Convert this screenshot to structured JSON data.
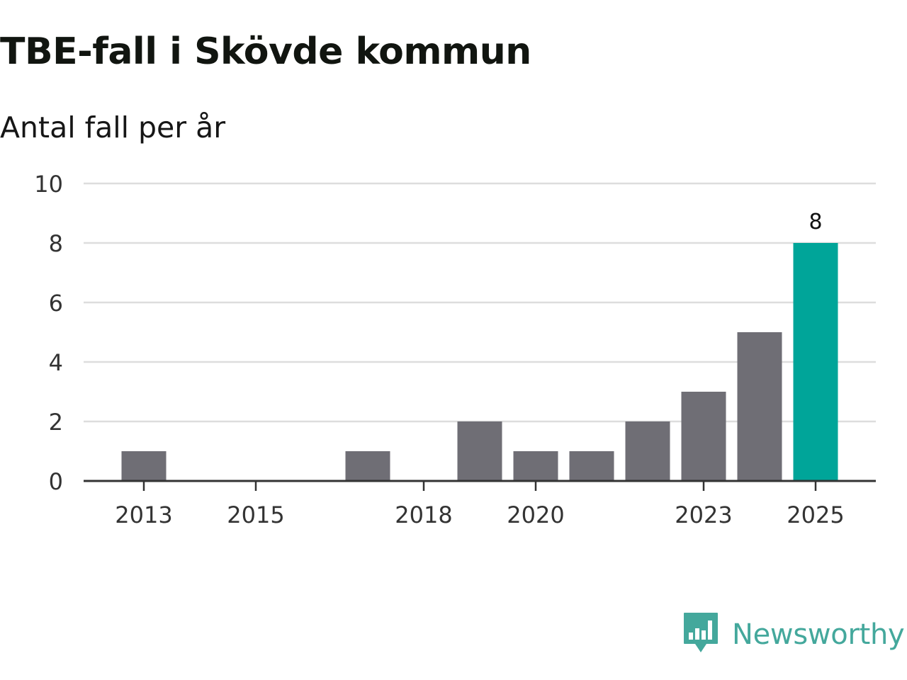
{
  "title": "TBE-fall i Skövde kommun",
  "subtitle": "Antal fall per år",
  "brand": {
    "name": "Newsworthy",
    "icon": "newsworthy-logo-icon",
    "color": "#44a89c"
  },
  "colors": {
    "bar": "#6f6e75",
    "highlight": "#00a599",
    "grid": "#dddddd",
    "axis": "#333333"
  },
  "chart_data": {
    "type": "bar",
    "title": "TBE-fall i Skövde kommun",
    "subtitle": "Antal fall per år",
    "xlabel": "",
    "ylabel": "Antal fall per år",
    "categories": [
      "2013",
      "2014",
      "2015",
      "2016",
      "2017",
      "2018",
      "2019",
      "2020",
      "2021",
      "2022",
      "2023",
      "2024",
      "2025"
    ],
    "values": [
      1,
      0,
      0,
      0,
      1,
      0,
      2,
      1,
      1,
      2,
      3,
      5,
      8
    ],
    "ylim": [
      0,
      10
    ],
    "yticks": [
      0,
      2,
      4,
      6,
      8,
      10
    ],
    "xtick_labels": [
      "2013",
      "2015",
      "2018",
      "2020",
      "2023",
      "2025"
    ],
    "highlight_category": "2025",
    "data_labels": [
      {
        "category": "2025",
        "text": "8"
      }
    ],
    "grid": true,
    "legend": "none"
  }
}
